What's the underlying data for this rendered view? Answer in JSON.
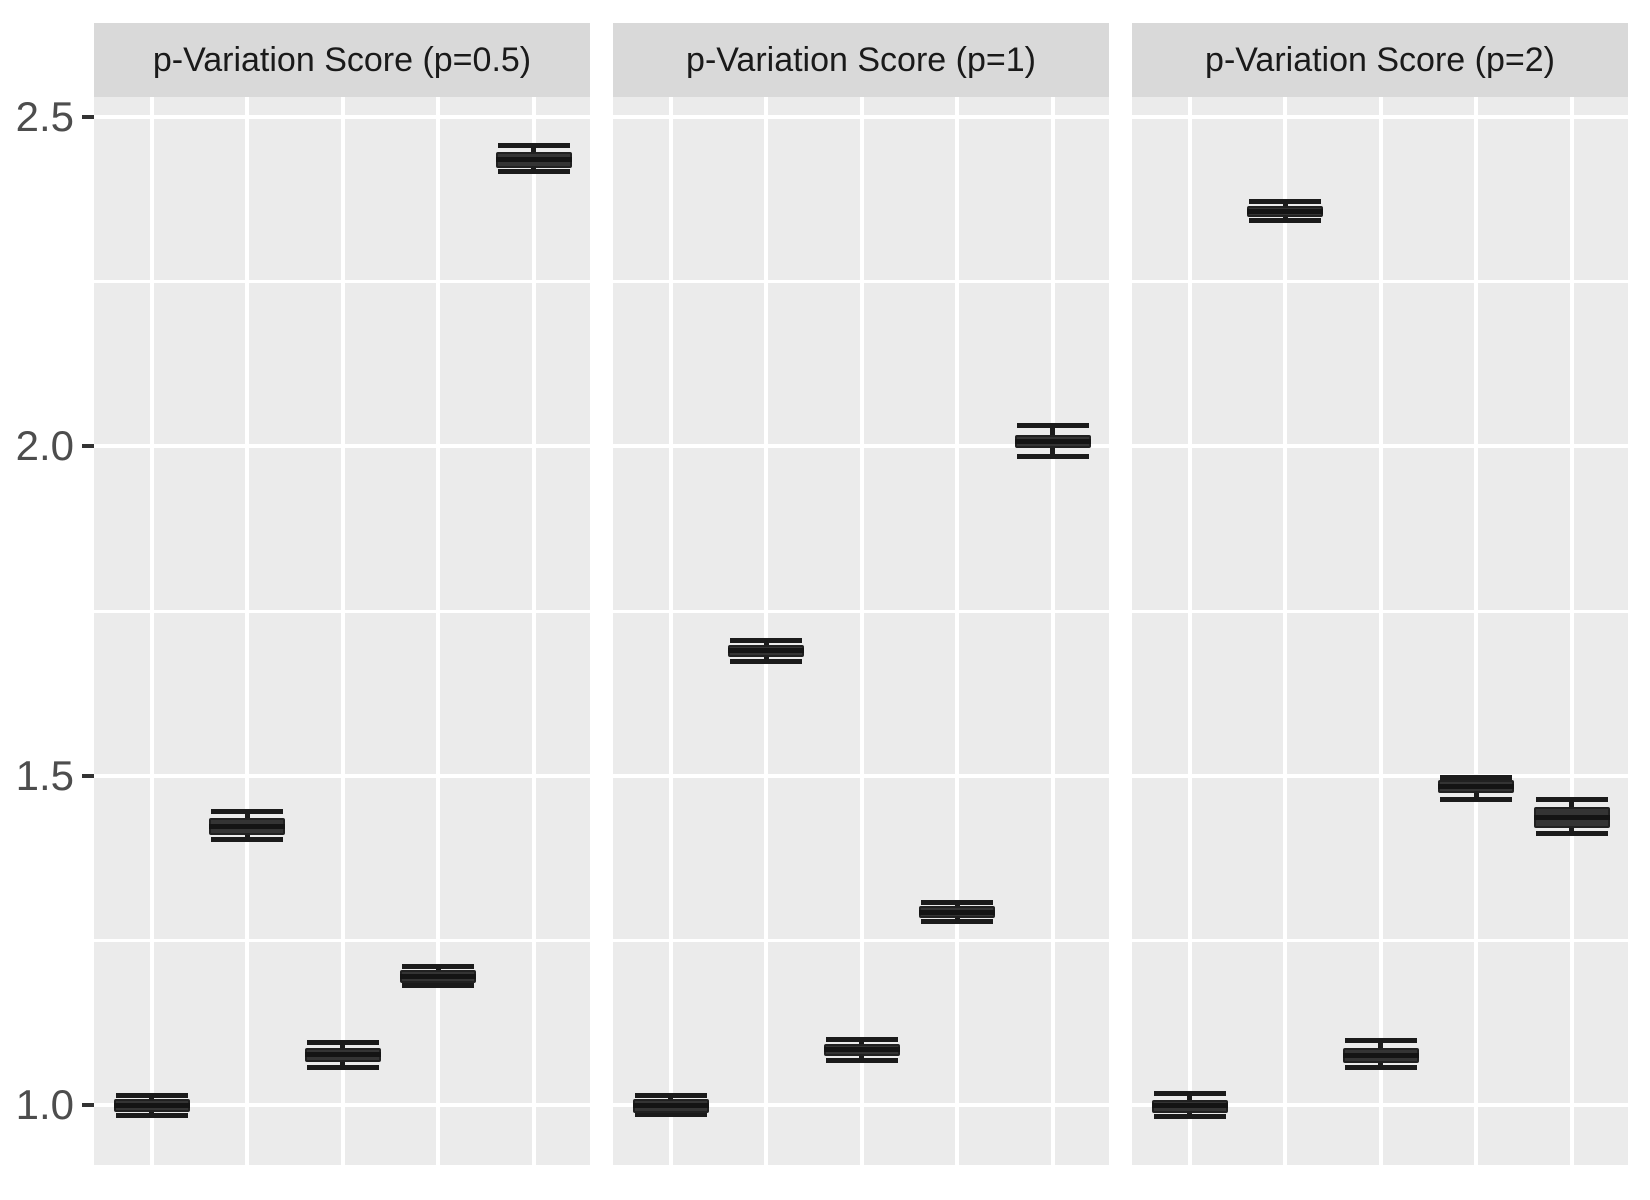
{
  "chart_data": {
    "type": "boxplot",
    "title": "",
    "xlabel": "",
    "ylabel": "",
    "x_axis": {
      "labels_shown": false,
      "positions_per_facet": 5
    },
    "y_axis": {
      "range": [
        0.909,
        2.53
      ],
      "major_ticks": [
        {
          "label": "2.5",
          "value": 2.5
        },
        {
          "label": "2.0",
          "value": 2.0
        },
        {
          "label": "1.5",
          "value": 1.5
        },
        {
          "label": "1.0",
          "value": 1.0
        }
      ],
      "minor_gridlines": [
        2.25,
        1.75,
        1.25
      ]
    },
    "facets": [
      {
        "title": "p-Variation Score (p=0.5)",
        "boxes": [
          {
            "x": 1,
            "median": 1.0,
            "q1": 0.989,
            "q3": 1.009,
            "whisker_low": 0.984,
            "whisker_high": 1.014
          },
          {
            "x": 2,
            "median": 1.423,
            "q1": 1.41,
            "q3": 1.436,
            "whisker_low": 1.403,
            "whisker_high": 1.445
          },
          {
            "x": 3,
            "median": 1.076,
            "q1": 1.066,
            "q3": 1.087,
            "whisker_low": 1.057,
            "whisker_high": 1.095
          },
          {
            "x": 4,
            "median": 1.195,
            "q1": 1.186,
            "q3": 1.205,
            "whisker_low": 1.181,
            "whisker_high": 1.21
          },
          {
            "x": 5,
            "median": 2.435,
            "q1": 2.423,
            "q3": 2.447,
            "whisker_low": 2.417,
            "whisker_high": 2.457
          }
        ]
      },
      {
        "title": "p-Variation Score (p=1)",
        "boxes": [
          {
            "x": 1,
            "median": 1.0,
            "q1": 0.988,
            "q3": 1.009,
            "whisker_low": 0.986,
            "whisker_high": 1.014
          },
          {
            "x": 2,
            "median": 1.69,
            "q1": 1.68,
            "q3": 1.699,
            "whisker_low": 1.673,
            "whisker_high": 1.706
          },
          {
            "x": 3,
            "median": 1.084,
            "q1": 1.075,
            "q3": 1.093,
            "whisker_low": 1.067,
            "whisker_high": 1.099
          },
          {
            "x": 4,
            "median": 1.293,
            "q1": 1.284,
            "q3": 1.302,
            "whisker_low": 1.279,
            "whisker_high": 1.307
          },
          {
            "x": 5,
            "median": 2.007,
            "q1": 1.997,
            "q3": 2.017,
            "whisker_low": 1.985,
            "whisker_high": 2.032
          }
        ]
      },
      {
        "title": "p-Variation Score (p=2)",
        "boxes": [
          {
            "x": 1,
            "median": 1.0,
            "q1": 0.988,
            "q3": 1.008,
            "whisker_low": 0.982,
            "whisker_high": 1.017
          },
          {
            "x": 2,
            "median": 2.356,
            "q1": 2.348,
            "q3": 2.365,
            "whisker_low": 2.343,
            "whisker_high": 2.372
          },
          {
            "x": 3,
            "median": 1.075,
            "q1": 1.064,
            "q3": 1.086,
            "whisker_low": 1.057,
            "whisker_high": 1.098
          },
          {
            "x": 4,
            "median": 1.484,
            "q1": 1.474,
            "q3": 1.494,
            "whisker_low": 1.464,
            "whisker_high": 1.498
          },
          {
            "x": 5,
            "median": 1.436,
            "q1": 1.42,
            "q3": 1.452,
            "whisker_low": 1.412,
            "whisker_high": 1.464
          }
        ]
      }
    ],
    "legend": {
      "shown": false
    },
    "colors": {
      "panel_background": "#ebebeb",
      "strip_background": "#d9d9d9",
      "gridline": "#ffffff",
      "box_fill": "#343434",
      "box_stroke": "#212121",
      "whisker": "#1b1b1b",
      "median": "#141414",
      "axis_text": "#4d4d4d",
      "strip_text": "#1a1a1a",
      "tick_mark": "#333333"
    }
  }
}
